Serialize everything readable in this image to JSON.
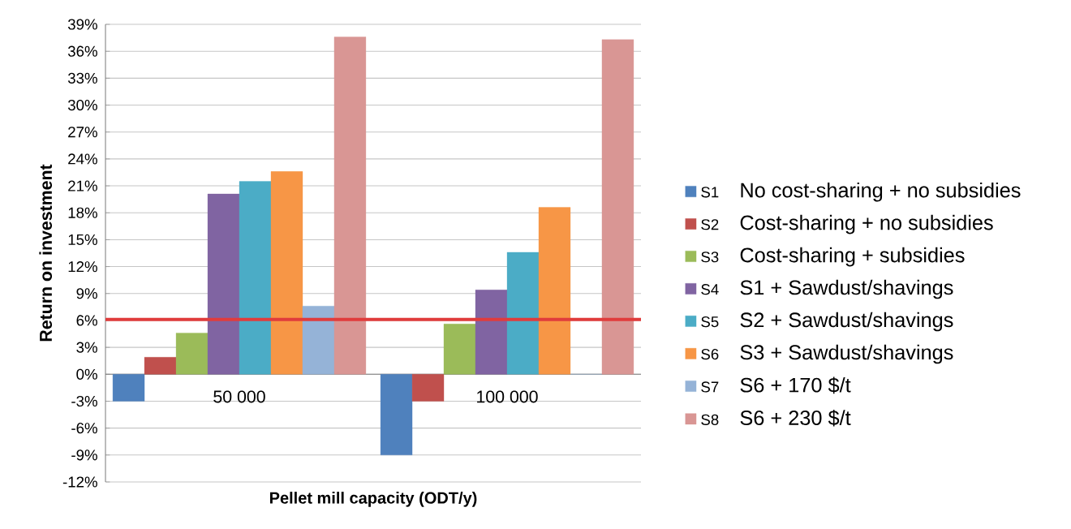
{
  "chart_data": {
    "type": "bar",
    "xlabel": "Pellet mill capacity (ODT/y)",
    "ylabel": "Return on investment",
    "categories": [
      "50 000",
      "100 000"
    ],
    "series": [
      {
        "name": "S1",
        "color": "#4f81bd",
        "values": [
          -3,
          -9
        ]
      },
      {
        "name": "S2",
        "color": "#c0504d",
        "values": [
          1.9,
          -3
        ]
      },
      {
        "name": "S3",
        "color": "#9bbb59",
        "values": [
          4.6,
          5.6
        ]
      },
      {
        "name": "S4",
        "color": "#8064a2",
        "values": [
          20.1,
          9.4
        ]
      },
      {
        "name": "S5",
        "color": "#4bacc6",
        "values": [
          21.5,
          13.6
        ]
      },
      {
        "name": "S6",
        "color": "#f79646",
        "values": [
          22.6,
          18.6
        ]
      },
      {
        "name": "S7",
        "color": "#95b3d7",
        "values": [
          7.6,
          0
        ]
      },
      {
        "name": "S8",
        "color": "#d99694",
        "values": [
          37.6,
          37.3
        ]
      }
    ],
    "annotations": [
      "No cost-sharing + no subsidies",
      "Cost-sharing + no subsidies",
      "Cost-sharing + subsidies",
      "S1 + Sawdust/shavings",
      "S2 + Sawdust/shavings",
      "S3 + Sawdust/shavings",
      "S6 + 170 $/t",
      "S6 + 230 $/t"
    ],
    "ylim": [
      -12,
      39
    ],
    "yticks": [
      {
        "value": -12,
        "label": "-12%"
      },
      {
        "value": -9,
        "label": "-9%"
      },
      {
        "value": -6,
        "label": "-6%"
      },
      {
        "value": -3,
        "label": "-3%"
      },
      {
        "value": 0,
        "label": "0%"
      },
      {
        "value": 3,
        "label": "3%"
      },
      {
        "value": 6,
        "label": "6%"
      },
      {
        "value": 9,
        "label": "9%"
      },
      {
        "value": 12,
        "label": "12%"
      },
      {
        "value": 15,
        "label": "15%"
      },
      {
        "value": 18,
        "label": "18%"
      },
      {
        "value": 21,
        "label": "21%"
      },
      {
        "value": 24,
        "label": "24%"
      },
      {
        "value": 27,
        "label": "27%"
      },
      {
        "value": 30,
        "label": "30%"
      },
      {
        "value": 33,
        "label": "33%"
      },
      {
        "value": 36,
        "label": "36%"
      },
      {
        "value": 39,
        "label": "39%"
      }
    ],
    "ref_lines": [
      {
        "axis": "y",
        "value": 6.1,
        "color": "#e03c3c"
      }
    ],
    "grid": "y",
    "legend": "right"
  }
}
